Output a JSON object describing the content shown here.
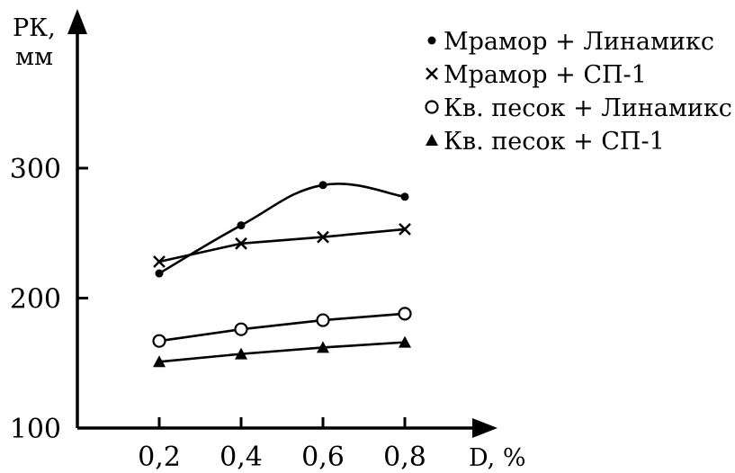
{
  "chart_data": {
    "type": "line",
    "x": [
      0.2,
      0.4,
      0.6,
      0.8
    ],
    "x_tick_labels": [
      "0,2",
      "0,4",
      "0,6",
      "0,8"
    ],
    "y_ticks": [
      100,
      200,
      300
    ],
    "y_tick_labels": [
      "100",
      "200",
      "300"
    ],
    "xlim": [
      0,
      0.9
    ],
    "ylim": [
      100,
      330
    ],
    "xlabel": "D, %",
    "ylabel_line1": "РК,",
    "ylabel_line2": "мм",
    "legend_position": "top-right",
    "series": [
      {
        "name": "Мрамор + Линамикс",
        "marker": "filled-circle",
        "smooth": true,
        "values": [
          219,
          256,
          287,
          278
        ]
      },
      {
        "name": "Мрамор + СП-1",
        "marker": "cross",
        "smooth": false,
        "values": [
          228,
          242,
          247,
          253
        ]
      },
      {
        "name": "Кв. песок + Линамикс",
        "marker": "open-circle",
        "smooth": false,
        "values": [
          167,
          176,
          183,
          188
        ]
      },
      {
        "name": "Кв. песок + СП-1",
        "marker": "filled-triangle",
        "smooth": false,
        "values": [
          151,
          157,
          162,
          166
        ]
      }
    ]
  }
}
